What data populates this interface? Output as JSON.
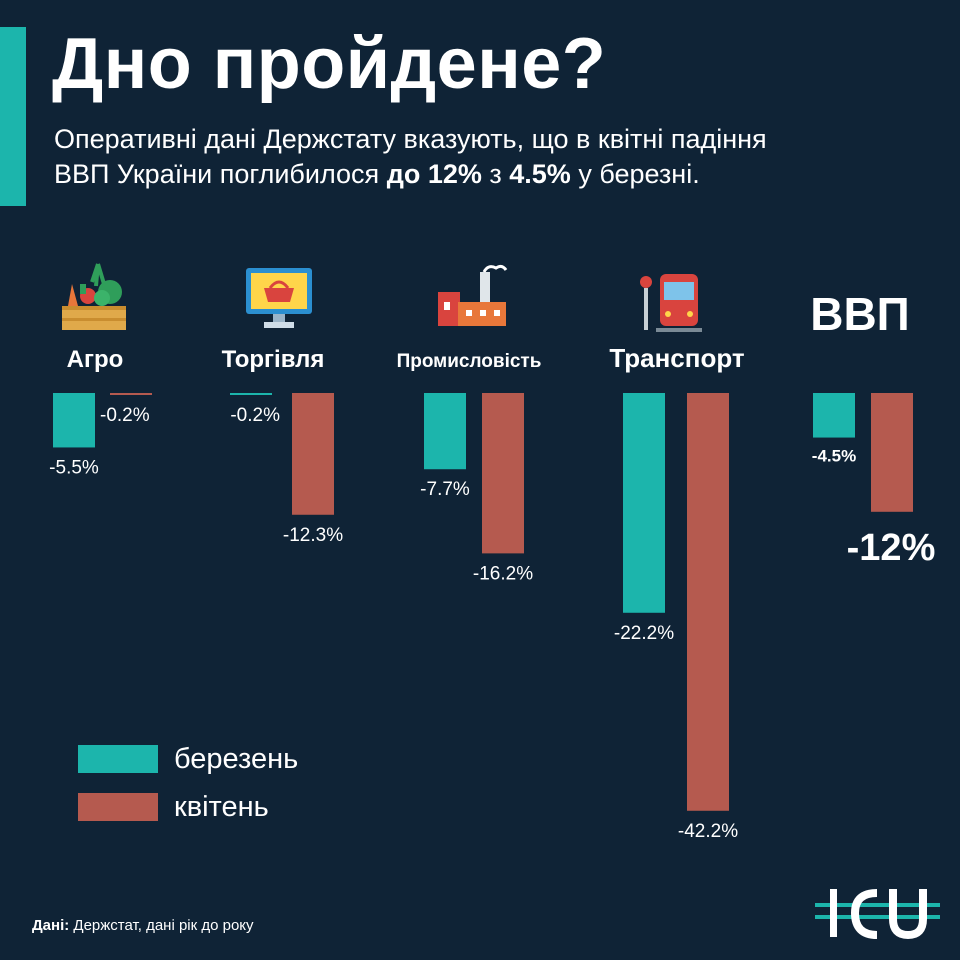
{
  "header": {
    "title": "Дно пройдене?",
    "subtitle_line1": "Оперативні дані Держстату вказують, що в квітні падіння",
    "subtitle_line2_pre": "ВВП України поглибилося ",
    "subtitle_line2_bold1": "до 12%",
    "subtitle_line2_mid": " з ",
    "subtitle_line2_bold2": "4.5%",
    "subtitle_line2_post": " у березні."
  },
  "colors": {
    "background": "#0f2336",
    "accent": "#1cb5ac",
    "march": "#1cb5ac",
    "april": "#b55a4f"
  },
  "chart_data": {
    "type": "bar",
    "orientation": "vertical-negative",
    "categories": [
      "Агро",
      "Торгівля",
      "Промисловість",
      "Транспорт",
      "ВВП"
    ],
    "series": [
      {
        "name": "березень",
        "values": [
          -5.5,
          -0.2,
          -7.7,
          -22.2,
          -4.5
        ],
        "labels": [
          "-5.5%",
          "-0.2%",
          "-7.7%",
          "-22.2%",
          "-4.5%"
        ]
      },
      {
        "name": "квітень",
        "values": [
          -0.2,
          -12.3,
          -16.2,
          -42.2,
          -12
        ],
        "labels": [
          "-0.2%",
          "-12.3%",
          "-16.2%",
          "-42.2%",
          "-12%"
        ]
      }
    ],
    "icons": [
      "vegetable-crate-icon",
      "shopping-basket-monitor-icon",
      "factory-icon",
      "train-icon",
      null
    ],
    "legend": "bottom-left"
  },
  "legend": {
    "march": "березень",
    "april": "квітень"
  },
  "footer": {
    "source_label": "Дані:",
    "source_text": " Держстат, дані рік до року"
  },
  "logo": {
    "text": "ICU"
  }
}
